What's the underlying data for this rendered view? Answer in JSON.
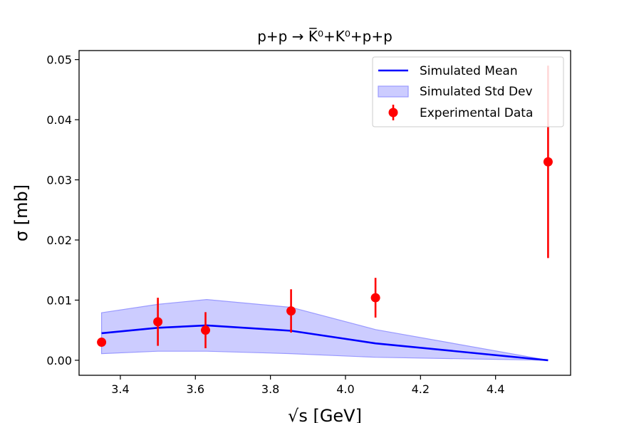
{
  "chart_data": {
    "type": "line",
    "title": "p+p → K̅⁰+K⁰+p+p",
    "xlabel": "√s [GeV]",
    "ylabel": "σ [mb]",
    "xlim": [
      3.29,
      4.6
    ],
    "ylim": [
      -0.0025,
      0.0515
    ],
    "xticks": [
      3.4,
      3.6,
      3.8,
      4.0,
      4.2,
      4.4
    ],
    "xtick_labels": [
      "3.4",
      "3.6",
      "3.8",
      "4.0",
      "4.2",
      "4.4"
    ],
    "yticks": [
      0.0,
      0.01,
      0.02,
      0.03,
      0.04,
      0.05
    ],
    "ytick_labels": [
      "0.00",
      "0.01",
      "0.02",
      "0.03",
      "0.04",
      "0.05"
    ],
    "legend_position": "top-right",
    "colors": {
      "mean": "#0000ff",
      "band": "#9999ff",
      "data": "#ff0000"
    },
    "series": [
      {
        "name": "Simulated Mean",
        "kind": "line",
        "x": [
          3.35,
          3.5,
          3.63,
          3.855,
          4.08,
          4.54
        ],
        "y": [
          0.0045,
          0.0054,
          0.0058,
          0.0049,
          0.0028,
          0.0
        ]
      },
      {
        "name": "Simulated Std Dev",
        "kind": "band",
        "x": [
          3.35,
          3.5,
          3.63,
          3.855,
          4.08,
          4.54
        ],
        "lower": [
          0.0011,
          0.0015,
          0.0015,
          0.0011,
          0.0005,
          0.0
        ],
        "upper": [
          0.0079,
          0.0093,
          0.0101,
          0.0088,
          0.0051,
          0.0
        ]
      },
      {
        "name": "Experimental Data",
        "kind": "errorbar",
        "x": [
          3.35,
          3.5,
          3.627,
          3.855,
          4.08,
          4.54
        ],
        "y": [
          0.003,
          0.0064,
          0.005,
          0.0082,
          0.0104,
          0.033
        ],
        "yerr": [
          0.0007,
          0.004,
          0.003,
          0.0036,
          0.0033,
          0.016
        ]
      }
    ]
  }
}
